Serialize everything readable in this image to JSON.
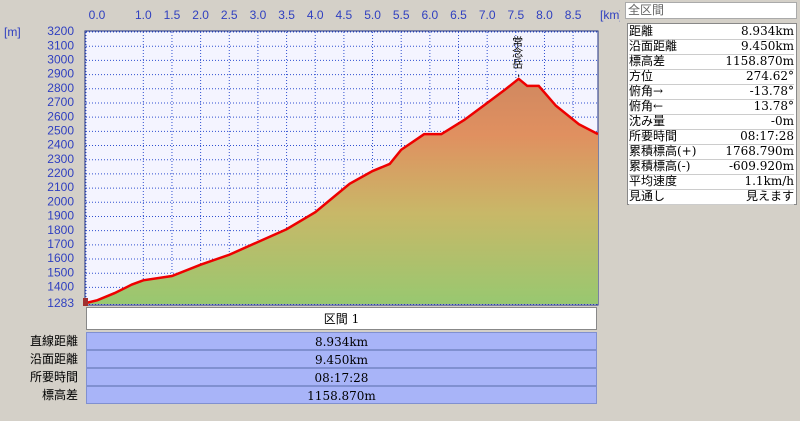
{
  "chart_data": {
    "type": "line",
    "x_unit": "[km]",
    "y_unit": "[m]",
    "annotation": "常念岳",
    "x": [
      0,
      0.2,
      0.5,
      0.8,
      1.0,
      1.5,
      2.0,
      2.5,
      3.0,
      3.5,
      4.0,
      4.3,
      4.6,
      5.0,
      5.3,
      5.5,
      5.9,
      6.2,
      6.6,
      7.0,
      7.3,
      7.55,
      7.7,
      7.9,
      8.2,
      8.6,
      8.934
    ],
    "values": [
      1290,
      1310,
      1360,
      1420,
      1450,
      1480,
      1560,
      1630,
      1720,
      1810,
      1930,
      2030,
      2130,
      2220,
      2270,
      2370,
      2480,
      2480,
      2580,
      2700,
      2790,
      2870,
      2820,
      2820,
      2680,
      2550,
      2480
    ],
    "color": "#ee0000",
    "xlim": [
      0,
      8.934
    ],
    "xticks": [
      {
        "value": 0,
        "label": "0.0"
      },
      {
        "value": 1,
        "label": "1.0"
      },
      1.5,
      {
        "value": 2,
        "label": "2.0"
      },
      2.5,
      {
        "value": 3,
        "label": "3.0"
      },
      3.5,
      {
        "value": 4,
        "label": "4.0"
      },
      4.5,
      {
        "value": 5,
        "label": "5.0"
      },
      5.5,
      {
        "value": 6,
        "label": "6.0"
      },
      6.5,
      {
        "value": 7,
        "label": "7.0"
      },
      7.5,
      {
        "value": 8,
        "label": "8.0"
      },
      8.5
    ],
    "ylim": [
      1283,
      3200
    ],
    "yticks": [
      1283,
      1400,
      1500,
      1600,
      1700,
      1800,
      1900,
      2000,
      2100,
      2200,
      2300,
      2400,
      2500,
      2600,
      2700,
      2800,
      2900,
      3000,
      3100,
      3200
    ],
    "grid": true
  },
  "summary_panel": {
    "title": "全区間",
    "rows": [
      [
        "距離",
        "8.934km"
      ],
      [
        "沿面距離",
        "9.450km"
      ],
      [
        "標高差",
        "1158.870m"
      ],
      [
        "方位",
        "274.62°"
      ],
      [
        "俯角→",
        "-13.78°"
      ],
      [
        "俯角←",
        "13.78°"
      ],
      [
        "沈み量",
        "-0m"
      ],
      [
        "所要時間",
        "08:17:28"
      ],
      [
        "累積標高(+)",
        "1768.790m"
      ],
      [
        "累積標高(-)",
        "-609.920m"
      ],
      [
        "平均速度",
        "1.1km/h"
      ],
      [
        "見通し",
        "見えます"
      ]
    ]
  },
  "section_table": {
    "title": "区間 1",
    "rows": [
      [
        "直線距離",
        "8.934km"
      ],
      [
        "沿面距離",
        "9.450km"
      ],
      [
        "所要時間",
        "08:17:28"
      ],
      [
        "標高差",
        "1158.870m"
      ]
    ]
  }
}
